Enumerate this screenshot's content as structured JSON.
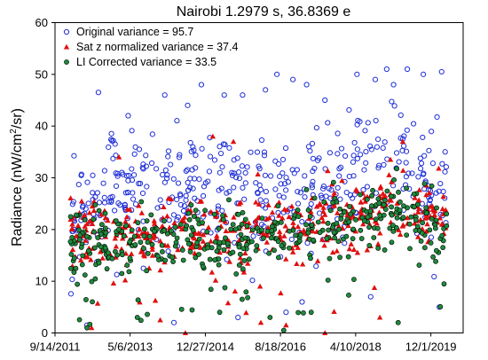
{
  "chart_data": {
    "type": "scatter",
    "title": "Nairobi 1.2979 s, 36.8369 e",
    "xlabel": "",
    "ylabel": "Radiance (nW/cm²/sr)",
    "ylabel_main": "Radiance (nW/cm",
    "ylabel_sup": "2",
    "ylabel_end": "/sr)",
    "ylim": [
      0,
      60
    ],
    "y_ticks": [
      0,
      10,
      20,
      30,
      40,
      50,
      60
    ],
    "xlim": [
      "2011-09-14",
      "2020-08-15"
    ],
    "x_ticks": [
      "9/14/2011",
      "5/6/2013",
      "12/27/2014",
      "8/18/2016",
      "4/10/2018",
      "12/1/2019"
    ],
    "grid": false,
    "legend_position": "top-left",
    "series": [
      {
        "name": "Original variance = 95.7",
        "marker": "open-circle",
        "color": "#1f2fd6",
        "trend": [
          [
            2012.0,
            25
          ],
          [
            2013.0,
            29
          ],
          [
            2014.0,
            29
          ],
          [
            2015.0,
            28
          ],
          [
            2016.0,
            27
          ],
          [
            2016.8,
            25
          ],
          [
            2017.5,
            30
          ],
          [
            2018.0,
            32
          ],
          [
            2018.5,
            35
          ],
          [
            2019.0,
            35
          ],
          [
            2019.5,
            32
          ],
          [
            2020.0,
            28
          ]
        ],
        "spread": 7.5,
        "outliers": [
          [
            2012.65,
            46.5
          ],
          [
            2013.3,
            42
          ],
          [
            2014.1,
            46
          ],
          [
            2014.6,
            44
          ],
          [
            2014.9,
            48
          ],
          [
            2015.4,
            46
          ],
          [
            2015.8,
            46
          ],
          [
            2016.3,
            47
          ],
          [
            2016.55,
            50
          ],
          [
            2016.9,
            49
          ],
          [
            2017.2,
            48
          ],
          [
            2017.6,
            45
          ],
          [
            2018.3,
            50
          ],
          [
            2018.7,
            49
          ],
          [
            2018.95,
            51
          ],
          [
            2019.1,
            48
          ],
          [
            2019.4,
            51
          ],
          [
            2019.75,
            50
          ],
          [
            2020.15,
            50.5
          ],
          [
            2012.4,
            1.5
          ],
          [
            2014.3,
            2
          ],
          [
            2016.75,
            4
          ],
          [
            2015.7,
            3
          ],
          [
            2017.1,
            6
          ],
          [
            2018.6,
            7
          ],
          [
            2020.1,
            5
          ]
        ]
      },
      {
        "name": "Sat z normalized variance = 37.4",
        "marker": "filled-triangle",
        "color": "#e01010",
        "trend": [
          [
            2012.0,
            20
          ],
          [
            2013.0,
            19
          ],
          [
            2014.0,
            19
          ],
          [
            2015.0,
            19
          ],
          [
            2016.0,
            20
          ],
          [
            2016.8,
            20
          ],
          [
            2017.5,
            22
          ],
          [
            2018.0,
            22
          ],
          [
            2018.5,
            24
          ],
          [
            2019.0,
            25
          ],
          [
            2019.5,
            24
          ],
          [
            2020.0,
            22
          ]
        ],
        "spread": 4.8,
        "outliers": [
          [
            2013.1,
            34
          ],
          [
            2015.15,
            38
          ],
          [
            2015.6,
            37
          ],
          [
            2019.3,
            37
          ],
          [
            2014.55,
            0
          ],
          [
            2017.6,
            0
          ],
          [
            2016.75,
            1.5
          ],
          [
            2016.2,
            2
          ],
          [
            2014.0,
            2.5
          ],
          [
            2018.8,
            3
          ],
          [
            2012.5,
            1
          ]
        ]
      },
      {
        "name": "LI Corrected variance = 33.5",
        "marker": "filled-circle",
        "color": "#1e8a3c",
        "trend": [
          [
            2012.0,
            18
          ],
          [
            2013.0,
            17.5
          ],
          [
            2014.0,
            17.5
          ],
          [
            2015.0,
            18
          ],
          [
            2016.0,
            19
          ],
          [
            2016.8,
            19
          ],
          [
            2017.5,
            21
          ],
          [
            2018.0,
            21
          ],
          [
            2018.5,
            23
          ],
          [
            2019.0,
            24
          ],
          [
            2019.5,
            23
          ],
          [
            2020.0,
            20
          ]
        ],
        "spread": 4.5,
        "outliers": [
          [
            2012.4,
            1
          ],
          [
            2016.7,
            0.5
          ],
          [
            2016.4,
            3
          ],
          [
            2017.3,
            4
          ],
          [
            2019.2,
            2
          ],
          [
            2013.5,
            3
          ],
          [
            2015.3,
            4
          ]
        ]
      }
    ]
  }
}
